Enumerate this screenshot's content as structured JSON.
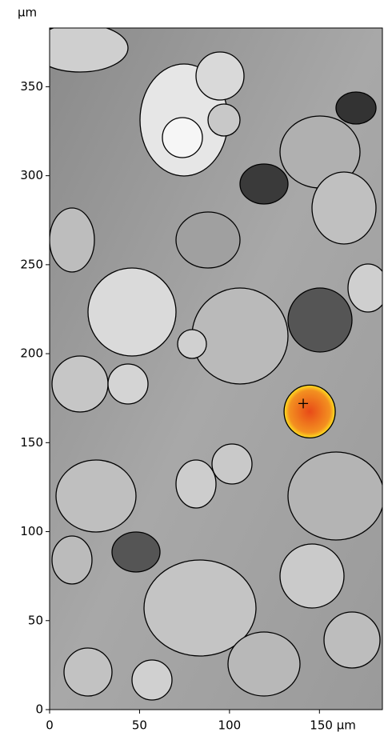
{
  "chart_data": {
    "type": "image",
    "ylabel": "µm",
    "xlim": [
      0,
      185
    ],
    "ylim": [
      0,
      383
    ],
    "xticks": [
      0,
      50,
      100,
      {
        "value": 150,
        "label": "150 µm"
      }
    ],
    "yticks": [
      0,
      50,
      100,
      150,
      200,
      250,
      300,
      350
    ],
    "marker": {
      "x": 141,
      "y": 172,
      "color": "#f07020"
    }
  }
}
